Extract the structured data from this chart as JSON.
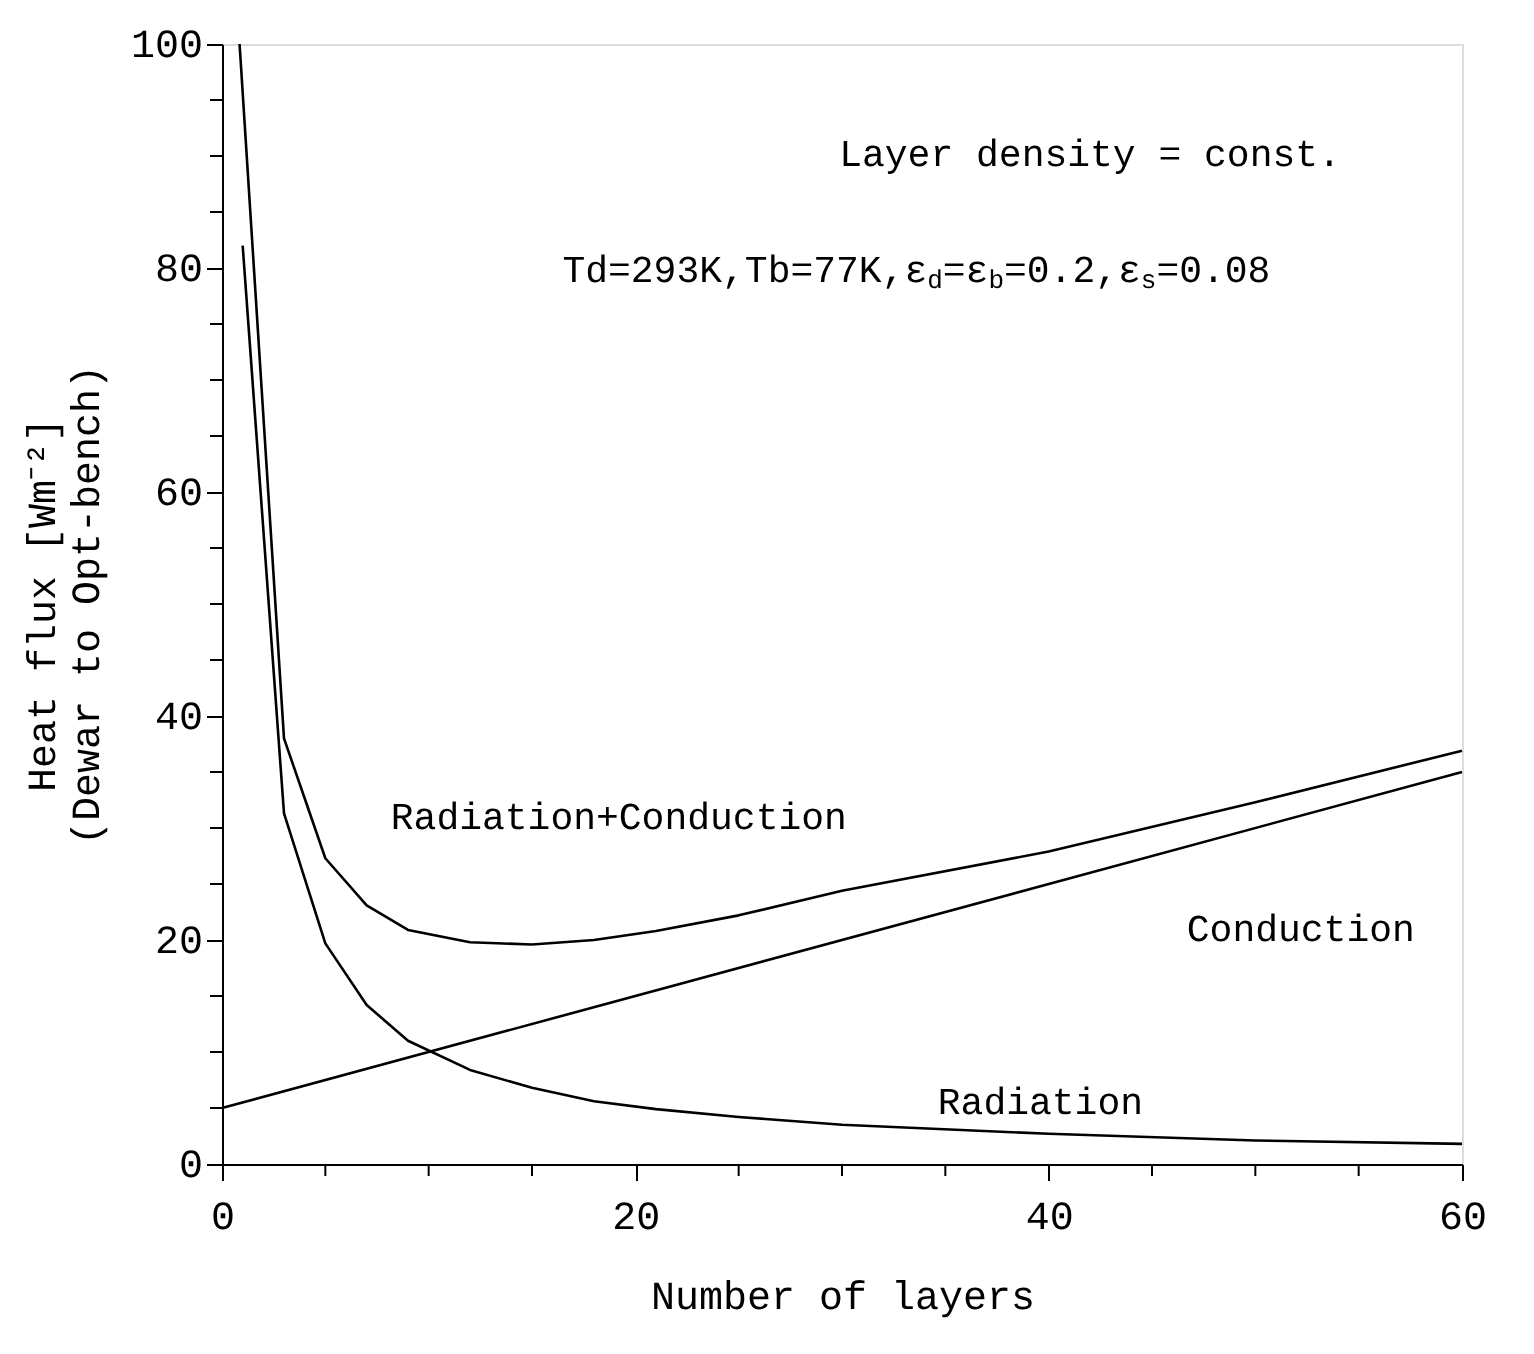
{
  "chart_data": {
    "type": "line",
    "xlabel": "Number of layers",
    "ylabel": "Heat flux [Wm⁻²]\n(Dewar to Opt-bench)",
    "xlim": [
      0,
      60
    ],
    "ylim": [
      0,
      100
    ],
    "xticks": [
      0,
      {
        "value": 5,
        "label": null
      },
      {
        "value": 10,
        "label": null
      },
      {
        "value": 15,
        "label": null
      },
      20,
      {
        "value": 25,
        "label": null
      },
      {
        "value": 30,
        "label": null
      },
      {
        "value": 35,
        "label": null
      },
      40,
      {
        "value": 45,
        "label": null
      },
      {
        "value": 50,
        "label": null
      },
      {
        "value": 55,
        "label": null
      },
      60
    ],
    "yticks": [
      0,
      {
        "value": 5,
        "label": null
      },
      {
        "value": 10,
        "label": null
      },
      {
        "value": 15,
        "label": null
      },
      20,
      {
        "value": 25,
        "label": null
      },
      {
        "value": 30,
        "label": null
      },
      {
        "value": 35,
        "label": null
      },
      40,
      {
        "value": 45,
        "label": null
      },
      {
        "value": 50,
        "label": null
      },
      {
        "value": 55,
        "label": null
      },
      60,
      {
        "value": 65,
        "label": null
      },
      {
        "value": 70,
        "label": null
      },
      {
        "value": 75,
        "label": null
      },
      80,
      {
        "value": 85,
        "label": null
      },
      {
        "value": 90,
        "label": null
      },
      {
        "value": 95,
        "label": null
      },
      100
    ],
    "grid": false,
    "legend": false,
    "marker": "none",
    "line_style": "solid",
    "series": [
      {
        "name": "Radiation",
        "color": "#000000",
        "x": [
          1,
          3,
          5,
          7,
          9,
          12,
          15,
          18,
          21,
          25,
          30,
          40,
          50,
          60
        ],
        "values": [
          82,
          31.3,
          19.7,
          14.2,
          11,
          8.4,
          6.8,
          5.6,
          4.9,
          4.2,
          3.5,
          2.7,
          2.1,
          1.8
        ]
      },
      {
        "name": "Conduction",
        "color": "#000000",
        "x": [
          0,
          60
        ],
        "values": [
          5,
          35
        ]
      },
      {
        "name": "Radiation+Conduction",
        "color": "#000000",
        "x": [
          0.85,
          3,
          5,
          7,
          9,
          12,
          15,
          18,
          21,
          25,
          30,
          40,
          50,
          60
        ],
        "values": [
          100,
          38,
          27.3,
          23.1,
          20.9,
          19.8,
          19.6,
          20,
          20.8,
          22.2,
          24.4,
          27.9,
          32.3,
          36.9
        ]
      }
    ],
    "annotations": [
      "Layer density = const.",
      "Td=293K,Tb=77K,ε$_{d}$=ε$_{b}$=0.2,ε$_{s}$=0.08"
    ]
  }
}
